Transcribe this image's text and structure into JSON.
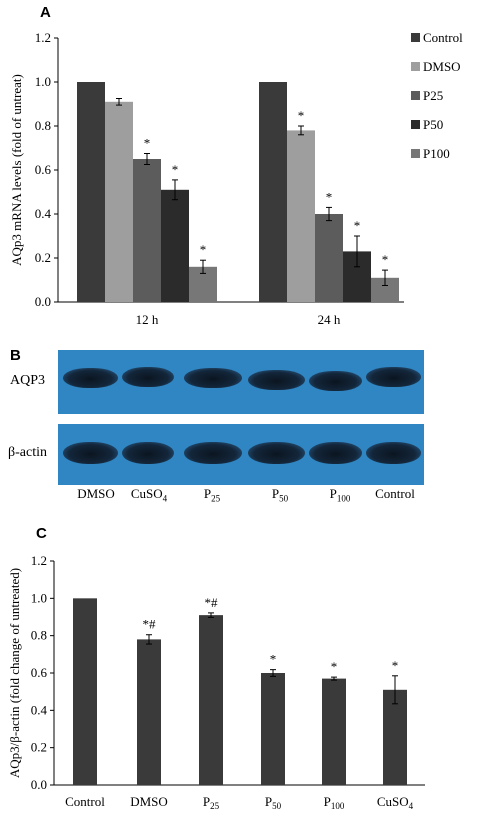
{
  "panels": {
    "A": {
      "letter": "A"
    },
    "B": {
      "letter": "B"
    },
    "C": {
      "letter": "C"
    }
  },
  "chart_data": [
    {
      "type": "bar",
      "panel": "A",
      "ylabel": "AQp3 mRNA levels (fold of untreat)",
      "categories": [
        "12 h",
        "24 h"
      ],
      "ylim": [
        0.0,
        1.2
      ],
      "yticks": [
        "0.0",
        "0.2",
        "0.4",
        "0.6",
        "0.8",
        "1.0",
        "1.2"
      ],
      "legend_position": "right",
      "series": [
        {
          "name": "Control",
          "color": "#3a3a3a",
          "values": [
            1.0,
            1.0
          ],
          "errors": [
            0.005,
            0.005
          ],
          "marks": [
            "",
            ""
          ]
        },
        {
          "name": "DMSO",
          "color": "#9e9e9e",
          "values": [
            0.91,
            0.78
          ],
          "errors": [
            0.015,
            0.02
          ],
          "marks": [
            "",
            "*"
          ]
        },
        {
          "name": "P25",
          "color": "#5c5c5c",
          "values": [
            0.65,
            0.4
          ],
          "errors": [
            0.025,
            0.03
          ],
          "marks": [
            "*",
            "*"
          ]
        },
        {
          "name": "P50",
          "color": "#2b2b2b",
          "values": [
            0.51,
            0.23
          ],
          "errors": [
            0.045,
            0.07
          ],
          "marks": [
            "*",
            "*"
          ]
        },
        {
          "name": "P100",
          "color": "#777777",
          "values": [
            0.16,
            0.11
          ],
          "errors": [
            0.03,
            0.035
          ],
          "marks": [
            "*",
            "*"
          ]
        }
      ]
    },
    {
      "type": "bar",
      "panel": "C",
      "ylabel": "AQp3/β-actin (fold change of untreated)",
      "categories": [
        "Control",
        "DMSO",
        "P25",
        "P50",
        "P100",
        "CuSO4"
      ],
      "ylim": [
        0.0,
        1.2
      ],
      "yticks": [
        "0.0",
        "0.2",
        "0.4",
        "0.6",
        "0.8",
        "1.0",
        "1.2"
      ],
      "bar_color": "#3a3a3a",
      "values": [
        1.0,
        0.78,
        0.91,
        0.6,
        0.57,
        0.51
      ],
      "errors": [
        0.005,
        0.025,
        0.012,
        0.018,
        0.008,
        0.075
      ],
      "marks": [
        "",
        "*#",
        "*#",
        "*",
        "*",
        "*"
      ]
    }
  ],
  "blot": {
    "rows": [
      "AQP3",
      "β-actin"
    ],
    "lanes": [
      {
        "main": "DMSO",
        "sub": ""
      },
      {
        "main": "CuSO",
        "sub": "4"
      },
      {
        "main": "P",
        "sub": "25"
      },
      {
        "main": "P",
        "sub": "50"
      },
      {
        "main": "P",
        "sub": "100"
      },
      {
        "main": "Control",
        "sub": ""
      }
    ]
  }
}
